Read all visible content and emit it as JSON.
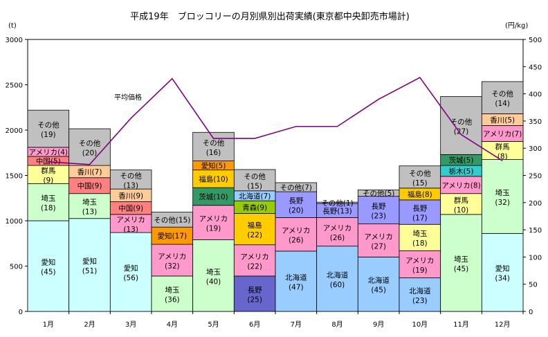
{
  "chart_data": {
    "type": "bar",
    "title": "平成19年　ブロッコリーの月別県別出荷実績(東京都中央卸売市場計)",
    "ylabel_left": "(t)",
    "ylabel_right": "(円/kg)",
    "ylim_left": [
      0,
      3000
    ],
    "yticks_left": [
      "0",
      "500",
      "1000",
      "1500",
      "2000",
      "2500",
      "3000"
    ],
    "ylim_right": [
      0,
      500
    ],
    "yticks_right": [
      "0",
      "50",
      "100",
      "150",
      "200",
      "250",
      "300",
      "350",
      "400",
      "450",
      "500"
    ],
    "categories": [
      "1月",
      "2月",
      "3月",
      "4月",
      "5月",
      "6月",
      "7月",
      "8月",
      "9月",
      "10月",
      "11月",
      "12月"
    ],
    "stacks": [
      [
        {
          "name": "愛知",
          "share": "(45)",
          "value": 1000,
          "color": "#ccffff"
        },
        {
          "name": "埼玉",
          "share": "(18)",
          "value": 410,
          "color": "#ccffcc"
        },
        {
          "name": "群馬",
          "share": "(9)",
          "value": 200,
          "color": "#ffff99"
        },
        {
          "name": "中国",
          "share": "(5)",
          "value": 100,
          "color": "#ff8080"
        },
        {
          "name": "アメリカ",
          "share": "(4)",
          "value": 100,
          "color": "#ff99cc"
        },
        {
          "name": "その他",
          "share": "(19)",
          "value": 410,
          "color": "#c0c0c0"
        }
      ],
      [
        {
          "name": "愛知",
          "share": "(51)",
          "value": 1025,
          "color": "#ccffff"
        },
        {
          "name": "埼玉",
          "share": "(13)",
          "value": 275,
          "color": "#ccffcc"
        },
        {
          "name": "中国",
          "share": "(9)",
          "value": 175,
          "color": "#ff8080"
        },
        {
          "name": "香川",
          "share": "(7)",
          "value": 135,
          "color": "#ffcc99"
        },
        {
          "name": "その他",
          "share": "(20)",
          "value": 405,
          "color": "#c0c0c0"
        }
      ],
      [
        {
          "name": "愛知",
          "share": "(56)",
          "value": 870,
          "color": "#ccffff"
        },
        {
          "name": "アメリカ",
          "share": "(13)",
          "value": 200,
          "color": "#ff99cc"
        },
        {
          "name": "中国",
          "share": "(9)",
          "value": 140,
          "color": "#ff8080"
        },
        {
          "name": "香川",
          "share": "(9)",
          "value": 140,
          "color": "#ffcc99"
        },
        {
          "name": "その他",
          "share": "(13)",
          "value": 210,
          "color": "#c0c0c0"
        }
      ],
      [
        {
          "name": "埼玉",
          "share": "(36)",
          "value": 390,
          "color": "#ccffcc"
        },
        {
          "name": "アメリカ",
          "share": "(32)",
          "value": 350,
          "color": "#ff99cc"
        },
        {
          "name": "愛知",
          "share": "(17)",
          "value": 190,
          "color": "#ff9900"
        },
        {
          "name": "その他",
          "share": "(15)",
          "value": 165,
          "color": "#c0c0c0"
        }
      ],
      [
        {
          "name": "埼玉",
          "share": "(40)",
          "value": 790,
          "color": "#ccffcc"
        },
        {
          "name": "アメリカ",
          "share": "(19)",
          "value": 380,
          "color": "#ff99cc"
        },
        {
          "name": "茨城",
          "share": "(10)",
          "value": 195,
          "color": "#339966"
        },
        {
          "name": "福島",
          "share": "(10)",
          "value": 195,
          "color": "#ffcc00"
        },
        {
          "name": "愛知",
          "share": "(5)",
          "value": 100,
          "color": "#ff9900"
        },
        {
          "name": "その他",
          "share": "(16)",
          "value": 315,
          "color": "#c0c0c0"
        }
      ],
      [
        {
          "name": "長野",
          "share": "(25)",
          "value": 390,
          "color": "#6666cc"
        },
        {
          "name": "アメリカ",
          "share": "(22)",
          "value": 345,
          "color": "#ff99cc"
        },
        {
          "name": "福島",
          "share": "(22)",
          "value": 345,
          "color": "#ffcc00"
        },
        {
          "name": "青森",
          "share": "(9)",
          "value": 140,
          "color": "#99cc00"
        },
        {
          "name": "北海道",
          "share": "(7)",
          "value": 110,
          "color": "#99ccff"
        },
        {
          "name": "その他",
          "share": "(15)",
          "value": 235,
          "color": "#c0c0c0"
        }
      ],
      [
        {
          "name": "北海道",
          "share": "(47)",
          "value": 665,
          "color": "#99ccff"
        },
        {
          "name": "アメリカ",
          "share": "(26)",
          "value": 370,
          "color": "#ff99cc"
        },
        {
          "name": "長野",
          "share": "(20)",
          "value": 285,
          "color": "#9999ff"
        },
        {
          "name": "その他",
          "share": "(7)",
          "value": 100,
          "color": "#c0c0c0"
        }
      ],
      [
        {
          "name": "北海道",
          "share": "(60)",
          "value": 720,
          "color": "#99ccff"
        },
        {
          "name": "アメリカ",
          "share": "(26)",
          "value": 315,
          "color": "#ff99cc"
        },
        {
          "name": "長野",
          "share": "(13)",
          "value": 155,
          "color": "#9999ff"
        },
        {
          "name": "その他",
          "share": "(1)",
          "value": 15,
          "color": "#c0c0c0"
        }
      ],
      [
        {
          "name": "北海道",
          "share": "(45)",
          "value": 600,
          "color": "#99ccff"
        },
        {
          "name": "アメリカ",
          "share": "(27)",
          "value": 365,
          "color": "#ff99cc"
        },
        {
          "name": "長野",
          "share": "(23)",
          "value": 305,
          "color": "#9999ff"
        },
        {
          "name": "その他",
          "share": "(5)",
          "value": 70,
          "color": "#c0c0c0"
        }
      ],
      [
        {
          "name": "北海道",
          "share": "(23)",
          "value": 370,
          "color": "#99ccff"
        },
        {
          "name": "アメリカ",
          "share": "(19)",
          "value": 300,
          "color": "#ff99cc"
        },
        {
          "name": "埼玉",
          "share": "(18)",
          "value": 290,
          "color": "#ffff99"
        },
        {
          "name": "長野",
          "share": "(17)",
          "value": 270,
          "color": "#9999ff"
        },
        {
          "name": "福島",
          "share": "(8)",
          "value": 130,
          "color": "#ffcc00"
        },
        {
          "name": "その他",
          "share": "(15)",
          "value": 245,
          "color": "#c0c0c0"
        }
      ],
      [
        {
          "name": "埼玉",
          "share": "(45)",
          "value": 1070,
          "color": "#ccffcc"
        },
        {
          "name": "群馬",
          "share": "(10)",
          "value": 230,
          "color": "#ffff99"
        },
        {
          "name": "アメリカ",
          "share": "(8)",
          "value": 190,
          "color": "#ff99cc"
        },
        {
          "name": "栃木",
          "share": "(5)",
          "value": 120,
          "color": "#33cccc"
        },
        {
          "name": "茨城",
          "share": "(5)",
          "value": 120,
          "color": "#339966"
        },
        {
          "name": "その他",
          "share": "(27)",
          "value": 640,
          "color": "#c0c0c0"
        }
      ],
      [
        {
          "name": "愛知",
          "share": "(34)",
          "value": 860,
          "color": "#ccffff"
        },
        {
          "name": "埼玉",
          "share": "(32)",
          "value": 815,
          "color": "#ccffcc"
        },
        {
          "name": "群馬",
          "share": "(8)",
          "value": 200,
          "color": "#ffff99"
        },
        {
          "name": "アメリカ",
          "share": "(7)",
          "value": 175,
          "color": "#ff99cc"
        },
        {
          "name": "香川",
          "share": "(5)",
          "value": 130,
          "color": "#ffcc99"
        },
        {
          "name": "その他",
          "share": "(14)",
          "value": 355,
          "color": "#c0c0c0"
        }
      ]
    ],
    "price_series": {
      "name": "平均価格",
      "axis": "right",
      "color": "#800080",
      "values": [
        275,
        270,
        355,
        428,
        318,
        318,
        340,
        340,
        390,
        430,
        325,
        277
      ]
    }
  }
}
